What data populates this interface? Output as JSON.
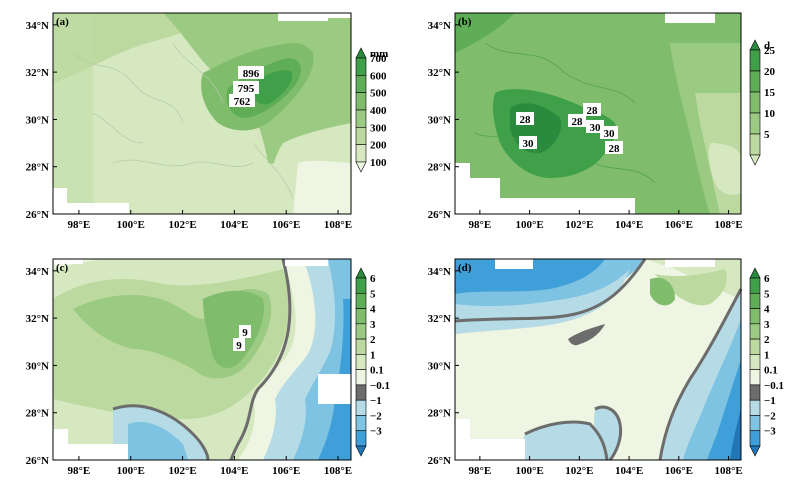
{
  "colors": {
    "g0": "#eef5e2",
    "g1": "#d6e8c0",
    "g2": "#bcd99f",
    "g3": "#9bca82",
    "g4": "#7fbd6d",
    "g5": "#5fae57",
    "g6": "#40a04a",
    "g7": "#2a8a3e",
    "b1": "#b5dbe6",
    "b2": "#7fc3e3",
    "b3": "#3f9fd8",
    "b4": "#2176b8",
    "zero": "#6c6c6c",
    "axis": "#000000",
    "land": "#ffffff"
  },
  "axes": {
    "lon_ticks": [
      "98°E",
      "100°E",
      "102°E",
      "104°E",
      "106°E",
      "108°E"
    ],
    "lat_ticks": [
      "34°N",
      "32°N",
      "30°N",
      "28°N",
      "26°N"
    ]
  },
  "panels": [
    {
      "label": "(a)",
      "colorbar": {
        "unit": "mm",
        "ticks": [
          "700",
          "600",
          "500",
          "400",
          "300",
          "200",
          "100"
        ]
      },
      "annotations": [
        "896",
        "795",
        "762"
      ]
    },
    {
      "label": "(b)",
      "colorbar": {
        "unit": "d",
        "ticks": [
          "25",
          "20",
          "15",
          "10",
          "5"
        ]
      },
      "annotations": [
        "28",
        "28",
        "28",
        "30",
        "28",
        "30"
      ]
    },
    {
      "label": "(c)",
      "colorbar": {
        "unit": "",
        "ticks": [
          "6",
          "5",
          "4",
          "3",
          "2",
          "1",
          "0.1",
          "−0.1",
          "−1",
          "−2",
          "−3"
        ]
      },
      "annotations": [
        "9",
        "9"
      ]
    },
    {
      "label": "(d)",
      "colorbar": {
        "unit": "",
        "ticks": [
          "6",
          "5",
          "4",
          "3",
          "2",
          "1",
          "0.1",
          "−0.1",
          "−1",
          "−2",
          "−3"
        ]
      },
      "annotations": []
    }
  ]
}
